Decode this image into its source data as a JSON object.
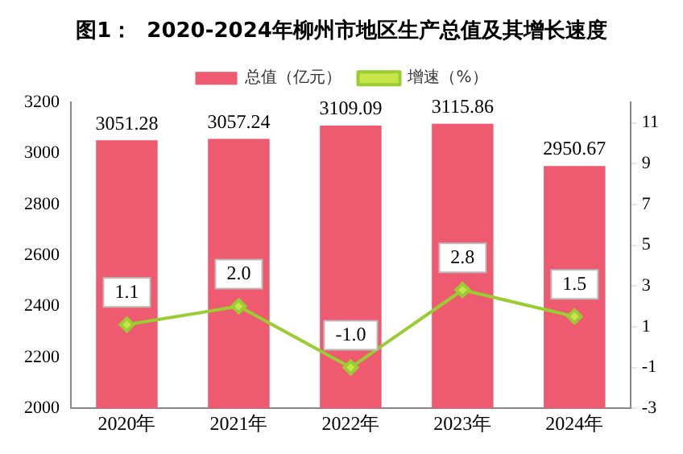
{
  "chart_data": {
    "type": "bar",
    "title": "图1：  2020-2024年柳州市地区生产总值及其增长速度",
    "categories": [
      "2020年",
      "2021年",
      "2022年",
      "2023年",
      "2024年"
    ],
    "series": [
      {
        "name": "总值（亿元）",
        "color": "#ee5a6f",
        "values": [
          3051.28,
          3057.24,
          3109.09,
          3115.86,
          2950.67
        ],
        "value_labels": [
          "3051.28",
          "3057.24",
          "3109.09",
          "3115.86",
          "2950.67"
        ]
      },
      {
        "name": "增速（%）",
        "type": "line",
        "axis": "y2",
        "color": "#9acd32",
        "values": [
          1.1,
          2.0,
          -1.0,
          2.8,
          1.5
        ],
        "value_labels": [
          "1.1",
          "2.0",
          "-1.0",
          "2.8",
          "1.5"
        ]
      }
    ],
    "ylim": [
      2000,
      3200
    ],
    "yticks": [
      2000,
      2200,
      2400,
      2600,
      2800,
      3000,
      3200
    ],
    "y2lim": [
      -3,
      12
    ],
    "y2ticks": [
      -3,
      -1,
      1,
      3,
      5,
      7,
      9,
      11
    ],
    "legend": "top",
    "marker": "diamond",
    "line_style": "solid"
  }
}
